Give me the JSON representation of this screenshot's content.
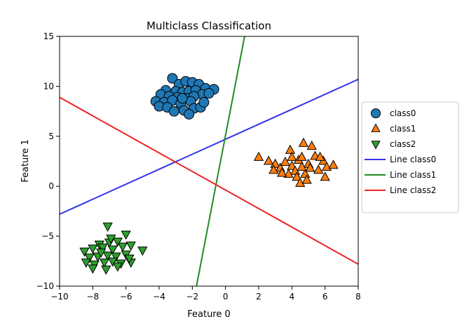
{
  "chart_data": {
    "type": "scatter",
    "title": "Multiclass Classification",
    "xlabel": "Feature 0",
    "ylabel": "Feature 1",
    "xlim": [
      -10,
      8
    ],
    "ylim": [
      -10,
      15
    ],
    "xticks": [
      -10,
      -8,
      -6,
      -4,
      -2,
      0,
      2,
      4,
      6,
      8
    ],
    "yticks": [
      -10,
      -5,
      0,
      5,
      10,
      15
    ],
    "xtick_labels": [
      "−10",
      "−8",
      "−6",
      "−4",
      "−2",
      "0",
      "2",
      "4",
      "6",
      "8"
    ],
    "ytick_labels": [
      "−10",
      "−5",
      "0",
      "5",
      "10",
      "15"
    ],
    "grid": false,
    "legend_position": "right-outside",
    "series": [
      {
        "name": "class0",
        "marker": "circle",
        "color": "#1f77b4",
        "points": [
          [
            -3.2,
            10.8
          ],
          [
            -2.8,
            10.2
          ],
          [
            -2.4,
            10.5
          ],
          [
            -2.0,
            10.4
          ],
          [
            -1.6,
            10.2
          ],
          [
            -1.2,
            9.8
          ],
          [
            -0.7,
            9.7
          ],
          [
            -3.6,
            9.6
          ],
          [
            -3.0,
            9.5
          ],
          [
            -2.6,
            9.4
          ],
          [
            -2.2,
            9.5
          ],
          [
            -1.8,
            9.6
          ],
          [
            -1.4,
            9.2
          ],
          [
            -3.9,
            9.2
          ],
          [
            -3.4,
            9.0
          ],
          [
            -2.9,
            8.9
          ],
          [
            -2.3,
            8.8
          ],
          [
            -1.9,
            9.0
          ],
          [
            -1.0,
            9.3
          ],
          [
            -4.2,
            8.5
          ],
          [
            -3.7,
            8.4
          ],
          [
            -3.2,
            8.6
          ],
          [
            -2.7,
            8.3
          ],
          [
            -2.1,
            8.5
          ],
          [
            -4.0,
            8.0
          ],
          [
            -3.5,
            7.9
          ],
          [
            -2.5,
            7.6
          ],
          [
            -1.9,
            7.8
          ],
          [
            -1.5,
            7.9
          ],
          [
            -3.1,
            7.5
          ],
          [
            -2.2,
            7.2
          ],
          [
            -1.3,
            8.4
          ],
          [
            -2.6,
            8.8
          ]
        ]
      },
      {
        "name": "class1",
        "marker": "triangle-up",
        "color": "#ff7f0e",
        "points": [
          [
            2.0,
            2.9
          ],
          [
            2.6,
            2.5
          ],
          [
            3.0,
            2.2
          ],
          [
            3.3,
            1.8
          ],
          [
            3.6,
            2.4
          ],
          [
            3.9,
            3.6
          ],
          [
            4.0,
            2.0
          ],
          [
            4.2,
            1.5
          ],
          [
            4.4,
            2.6
          ],
          [
            4.6,
            2.9
          ],
          [
            4.7,
            4.3
          ],
          [
            5.0,
            2.2
          ],
          [
            5.2,
            4.0
          ],
          [
            5.4,
            3.0
          ],
          [
            5.6,
            1.6
          ],
          [
            5.9,
            2.5
          ],
          [
            6.1,
            1.9
          ],
          [
            6.5,
            2.1
          ],
          [
            3.8,
            1.2
          ],
          [
            4.3,
            0.9
          ],
          [
            4.8,
            1.2
          ],
          [
            5.1,
            1.8
          ],
          [
            4.0,
            2.9
          ],
          [
            4.5,
            0.3
          ],
          [
            4.9,
            0.6
          ],
          [
            5.7,
            2.9
          ],
          [
            3.4,
            1.3
          ],
          [
            4.6,
            1.9
          ],
          [
            2.9,
            1.6
          ],
          [
            6.0,
            0.9
          ]
        ]
      },
      {
        "name": "class2",
        "marker": "triangle-down",
        "color": "#2ca02c",
        "points": [
          [
            -7.1,
            -4.0
          ],
          [
            -6.0,
            -4.8
          ],
          [
            -6.5,
            -5.5
          ],
          [
            -7.6,
            -5.8
          ],
          [
            -7.0,
            -5.6
          ],
          [
            -8.5,
            -6.5
          ],
          [
            -8.0,
            -6.2
          ],
          [
            -7.4,
            -6.1
          ],
          [
            -6.8,
            -6.3
          ],
          [
            -6.2,
            -6.0
          ],
          [
            -5.7,
            -5.9
          ],
          [
            -5.0,
            -6.4
          ],
          [
            -8.2,
            -7.1
          ],
          [
            -7.7,
            -7.0
          ],
          [
            -7.1,
            -6.9
          ],
          [
            -6.6,
            -7.0
          ],
          [
            -6.0,
            -6.8
          ],
          [
            -8.4,
            -7.6
          ],
          [
            -7.9,
            -7.8
          ],
          [
            -7.3,
            -7.6
          ],
          [
            -6.8,
            -7.5
          ],
          [
            -6.3,
            -7.7
          ],
          [
            -5.7,
            -7.6
          ],
          [
            -8.0,
            -8.2
          ],
          [
            -7.2,
            -8.3
          ],
          [
            -6.5,
            -8.0
          ],
          [
            -7.5,
            -6.6
          ],
          [
            -6.9,
            -5.2
          ],
          [
            -5.8,
            -7.2
          ]
        ]
      }
    ],
    "lines": [
      {
        "name": "Line class0",
        "color": "#3333ee",
        "x": [
          -10,
          8
        ],
        "y": [
          -2.8,
          10.7
        ]
      },
      {
        "name": "Line class1",
        "color": "#228b22",
        "x": [
          -1.75,
          1.15
        ],
        "y": [
          -10,
          15
        ]
      },
      {
        "name": "Line class2",
        "color": "#ee2222",
        "x": [
          -10,
          8
        ],
        "y": [
          8.9,
          -7.8
        ]
      }
    ]
  }
}
